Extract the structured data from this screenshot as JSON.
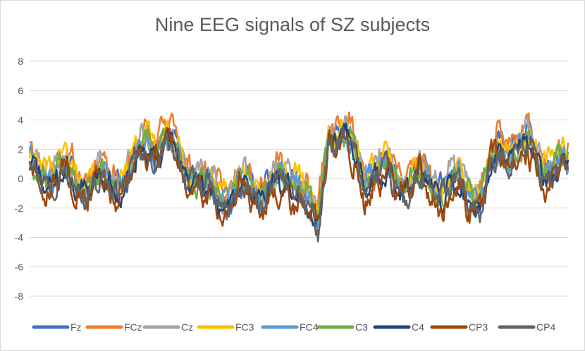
{
  "chart_data": {
    "type": "line",
    "title": "Nine EEG signals of SZ subjects",
    "xlabel": "",
    "ylabel": "",
    "ylim": [
      -8,
      8
    ],
    "yticks": [
      "8",
      "6",
      "4",
      "2",
      "0",
      "-2",
      "-4",
      "-6",
      "-8"
    ],
    "ytick_values": [
      8,
      6,
      4,
      2,
      0,
      -2,
      -4,
      -6,
      -8
    ],
    "grid": true,
    "legend_position": "bottom",
    "n_samples": 520,
    "series": [
      {
        "name": "Fz",
        "color": "#4472C4",
        "offset": 0.4,
        "amp": 1.0,
        "seed": 11
      },
      {
        "name": "FCz",
        "color": "#ED7D31",
        "offset": 0.9,
        "amp": 1.1,
        "seed": 23
      },
      {
        "name": "Cz",
        "color": "#A5A5A5",
        "offset": 0.6,
        "amp": 1.05,
        "seed": 37
      },
      {
        "name": "FC3",
        "color": "#FFC000",
        "offset": 0.7,
        "amp": 0.95,
        "seed": 41
      },
      {
        "name": "FC4",
        "color": "#5B9BD5",
        "offset": 0.2,
        "amp": 1.0,
        "seed": 53
      },
      {
        "name": "C3",
        "color": "#70AD47",
        "offset": 0.3,
        "amp": 0.95,
        "seed": 67
      },
      {
        "name": "C4",
        "color": "#264478",
        "offset": -0.1,
        "amp": 1.0,
        "seed": 71
      },
      {
        "name": "CP3",
        "color": "#9E480E",
        "offset": -0.4,
        "amp": 1.15,
        "seed": 83
      },
      {
        "name": "CP4",
        "color": "#636363",
        "offset": -0.2,
        "amp": 1.0,
        "seed": 97
      }
    ],
    "trend_x": [
      0.0,
      0.05,
      0.1,
      0.14,
      0.19,
      0.22,
      0.27,
      0.33,
      0.4,
      0.47,
      0.5,
      0.535,
      0.555,
      0.575,
      0.62,
      0.66,
      0.72,
      0.79,
      0.84,
      0.87,
      0.9,
      0.95,
      1.0
    ],
    "trend_y": [
      0.5,
      0.3,
      -0.3,
      -0.6,
      0.2,
      2.5,
      1.6,
      -1.2,
      -1.0,
      -0.7,
      0.0,
      -3.8,
      3.2,
      2.8,
      0.3,
      0.2,
      -0.5,
      -0.8,
      -1.2,
      1.5,
      2.2,
      1.0,
      0.4
    ]
  }
}
